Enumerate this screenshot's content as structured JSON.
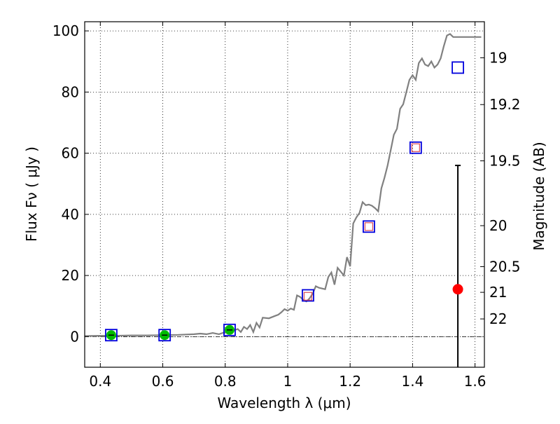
{
  "chart_data": {
    "type": "scatter",
    "xlabel": "Wavelength  λ (μm)",
    "ylabel": "Flux  Fν  ( μJy )",
    "y2label": "Magnitude (AB)",
    "xlim": [
      0.35,
      1.63
    ],
    "ylim": [
      -10,
      103
    ],
    "grid": true,
    "x_ticks": [
      0.4,
      0.6,
      0.8,
      1.0,
      1.2,
      1.4,
      1.6
    ],
    "x_tick_labels": [
      "0.4",
      "0.6",
      "0.8",
      "1",
      "1.2",
      "1.4",
      "1.6"
    ],
    "y_ticks": [
      0,
      20,
      40,
      60,
      80,
      100
    ],
    "y_tick_labels": [
      "0",
      "20",
      "40",
      "60",
      "80",
      "100"
    ],
    "y2_ticks": [
      {
        "label": "19",
        "flux": 91.2
      },
      {
        "label": "19.2",
        "flux": 75.9
      },
      {
        "label": "19.5",
        "flux": 57.5
      },
      {
        "label": "20",
        "flux": 36.3
      },
      {
        "label": "20.5",
        "flux": 22.9
      },
      {
        "label": "21",
        "flux": 14.5
      },
      {
        "label": "22",
        "flux": 5.8
      }
    ],
    "zero_line": 0,
    "series": [
      {
        "style": "line",
        "color": "#808080",
        "x": [
          0.35,
          0.4,
          0.45,
          0.5,
          0.55,
          0.6,
          0.65,
          0.7,
          0.72,
          0.74,
          0.76,
          0.78,
          0.8,
          0.82,
          0.84,
          0.85,
          0.86,
          0.87,
          0.88,
          0.89,
          0.9,
          0.91,
          0.92,
          0.94,
          0.96,
          0.97,
          0.98,
          0.99,
          1.0,
          1.01,
          1.02,
          1.03,
          1.04,
          1.05,
          1.06,
          1.07,
          1.08,
          1.09,
          1.1,
          1.12,
          1.13,
          1.14,
          1.15,
          1.16,
          1.18,
          1.19,
          1.2,
          1.21,
          1.22,
          1.23,
          1.24,
          1.25,
          1.26,
          1.27,
          1.28,
          1.29,
          1.3,
          1.31,
          1.32,
          1.33,
          1.34,
          1.35,
          1.36,
          1.37,
          1.38,
          1.39,
          1.4,
          1.41,
          1.42,
          1.43,
          1.44,
          1.45,
          1.46,
          1.47,
          1.48,
          1.49,
          1.5,
          1.51,
          1.52,
          1.53,
          1.54,
          1.55,
          1.56,
          1.57,
          1.58,
          1.59,
          1.6,
          1.61,
          1.62
        ],
        "y": [
          0.2,
          0.3,
          0.3,
          0.4,
          0.4,
          0.5,
          0.6,
          0.8,
          1.0,
          0.8,
          1.2,
          0.8,
          1.5,
          1.8,
          2.5,
          1.5,
          3.2,
          2.5,
          3.8,
          1.5,
          4.5,
          3.0,
          6.2,
          6.0,
          6.8,
          7.2,
          8.0,
          9.0,
          8.5,
          9.2,
          8.8,
          13.5,
          13.0,
          12.0,
          11.5,
          12.5,
          14.0,
          16.5,
          16.0,
          15.5,
          19.5,
          21.0,
          17.0,
          22.5,
          20.0,
          26.0,
          23.0,
          37.0,
          39.0,
          40.5,
          44.0,
          43.0,
          43.2,
          42.8,
          42.0,
          41.0,
          48.5,
          52.0,
          56.0,
          61.0,
          66.0,
          68.0,
          74.5,
          76.0,
          80.0,
          84.0,
          85.5,
          84.0,
          89.5,
          91.0,
          89.0,
          88.5,
          90.0,
          88.0,
          89.0,
          91.0,
          95.0,
          98.5,
          99.0,
          98.0,
          98.0,
          98.0,
          98.0,
          98.0,
          98.0,
          98.0,
          98.0,
          98.0,
          98.0
        ]
      },
      {
        "style": "open-square",
        "color": "#0000dd",
        "x": [
          0.435,
          0.606,
          0.814,
          1.065,
          1.26,
          1.41,
          1.545
        ],
        "y": [
          0.5,
          0.5,
          2.2,
          13.5,
          36.0,
          61.8,
          88.0
        ]
      },
      {
        "style": "small-open-square",
        "color": "#d94b57",
        "x": [
          1.065,
          1.26,
          1.41
        ],
        "y": [
          13.2,
          36.0,
          61.8
        ]
      },
      {
        "style": "filled-circle",
        "color": "#00bb00",
        "x": [
          0.435,
          0.606,
          0.814
        ],
        "y": [
          0.5,
          0.5,
          2.2
        ]
      },
      {
        "style": "filled-circle-errorbar",
        "color": "#ff0000",
        "x": [
          1.545
        ],
        "y": [
          15.5
        ],
        "yerr_low": [
          -10
        ],
        "yerr_high": [
          56
        ]
      }
    ]
  }
}
